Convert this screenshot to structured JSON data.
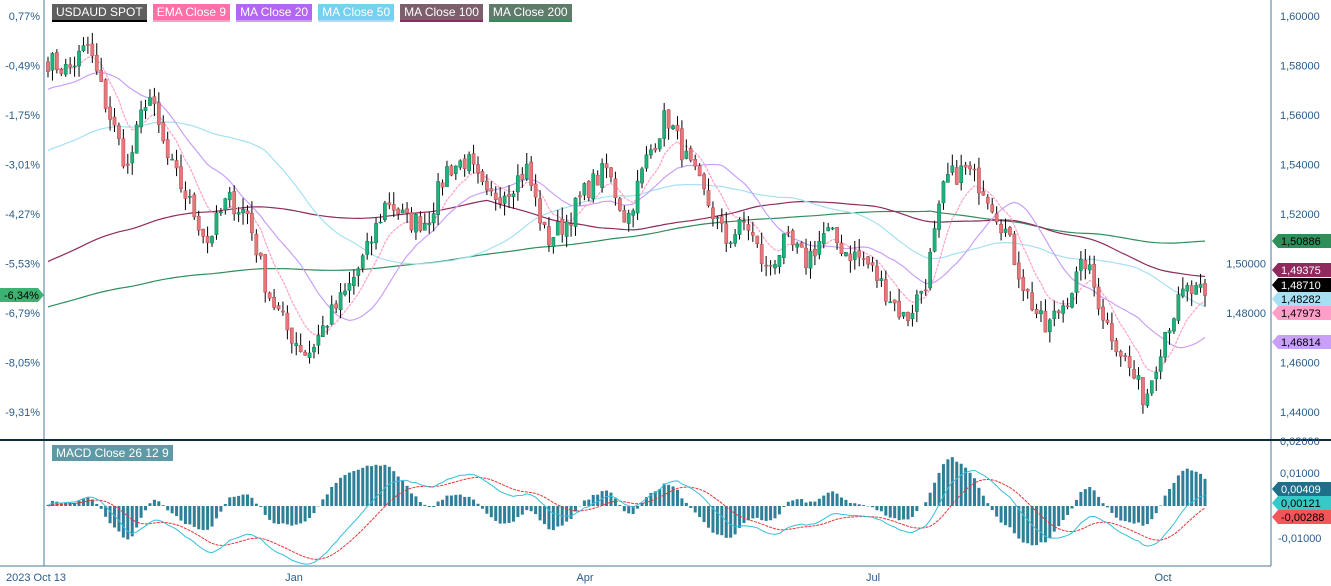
{
  "legend": [
    {
      "label": "USDAUD SPOT",
      "bg": "#5f5f5f",
      "line": "#000000"
    },
    {
      "label": "EMA Close 9",
      "bg": "#ff6fa8",
      "line": "#ff9fc8"
    },
    {
      "label": "MA Close 20",
      "bg": "#b266f2",
      "line": "#c9a0f7"
    },
    {
      "label": "MA Close 50",
      "bg": "#74d2ee",
      "line": "#a5e1f2"
    },
    {
      "label": "MA Close 100",
      "bg": "#7b5f6c",
      "line": "#8e2a5e"
    },
    {
      "label": "MA Close 200",
      "bg": "#5f7b6a",
      "line": "#2e8f5a"
    }
  ],
  "macd_legend": "MACD Close 26 12 9",
  "chart_data": [
    {
      "type": "candlestick",
      "series_name": "USDAUD SPOT",
      "approx_closes": [
        1.582,
        1.578,
        1.588,
        1.562,
        1.538,
        1.57,
        1.542,
        1.526,
        1.509,
        1.526,
        1.52,
        1.489,
        1.473,
        1.463,
        1.477,
        1.489,
        1.505,
        1.526,
        1.517,
        1.517,
        1.538,
        1.542,
        1.526,
        1.53,
        1.538,
        1.509,
        1.517,
        1.53,
        1.538,
        1.517,
        1.542,
        1.56,
        1.542,
        1.526,
        1.509,
        1.517,
        1.497,
        1.509,
        1.501,
        1.513,
        1.505,
        1.501,
        1.489,
        1.477,
        1.493,
        1.534,
        1.538,
        1.53,
        1.513,
        1.489,
        1.473,
        1.485,
        1.501,
        1.477,
        1.461,
        1.445,
        1.473,
        1.489,
        1.4871
      ],
      "ylim": [
        1.425,
        1.605
      ],
      "right_ticks": [
        "1,60000",
        "1,58000",
        "1,56000",
        "1,54000",
        "1,52000",
        "1,50000",
        "1,48000",
        "1,46000",
        "1,44000"
      ],
      "left_ticks": [
        "0,77%",
        "-0,49%",
        "-1,75%",
        "-3,01%",
        "-4,27%",
        "-5,53%",
        "-6,79%",
        "-8,05%",
        "-9,31%"
      ],
      "left_current": {
        "label": "-6,34%",
        "color": "#3cb371"
      },
      "x_ticks": [
        "2023 Oct 13",
        "Jan",
        "Apr",
        "Jul",
        "Oct"
      ],
      "last_values": [
        {
          "label": "1,50886",
          "series": "MA Close 200",
          "color": "#2e8f5a",
          "text": "#000000"
        },
        {
          "label": "1,49375",
          "series": "MA Close 100",
          "color": "#8e2a5e",
          "text": "#ffffff"
        },
        {
          "label": "1,48710",
          "series": "USDAUD SPOT",
          "color": "#000000",
          "text": "#ffffff"
        },
        {
          "label": "1,48282",
          "series": "MA Close 50",
          "color": "#a5e1f2",
          "text": "#000000"
        },
        {
          "label": "1,47973",
          "series": "EMA Close 9",
          "color": "#ff9fc8",
          "text": "#000000"
        },
        {
          "label": "1,46814",
          "series": "MA Close 20",
          "color": "#c9a0f7",
          "text": "#000000"
        }
      ],
      "colors": {
        "up": "#1fb27c",
        "down": "#e8777b",
        "wick": "#000000"
      }
    },
    {
      "type": "macd",
      "title": "MACD Close 26 12 9",
      "ylim": [
        -0.0165,
        0.021
      ],
      "ticks": [
        "0,02000",
        "0,01000",
        "-0,01000"
      ],
      "last_values": [
        {
          "label": "0,00409",
          "series": "histogram",
          "color": "#1f6f8b",
          "text": "#ffffff"
        },
        {
          "label": "0,00121",
          "series": "macd",
          "color": "#35c9c9",
          "text": "#000000"
        },
        {
          "label": "-0,00288",
          "series": "signal",
          "color": "#f2555a",
          "text": "#000000"
        }
      ],
      "colors": {
        "histogram": "#2f7f99",
        "macd": "#35c0d9",
        "signal": "#e8353a"
      }
    }
  ]
}
